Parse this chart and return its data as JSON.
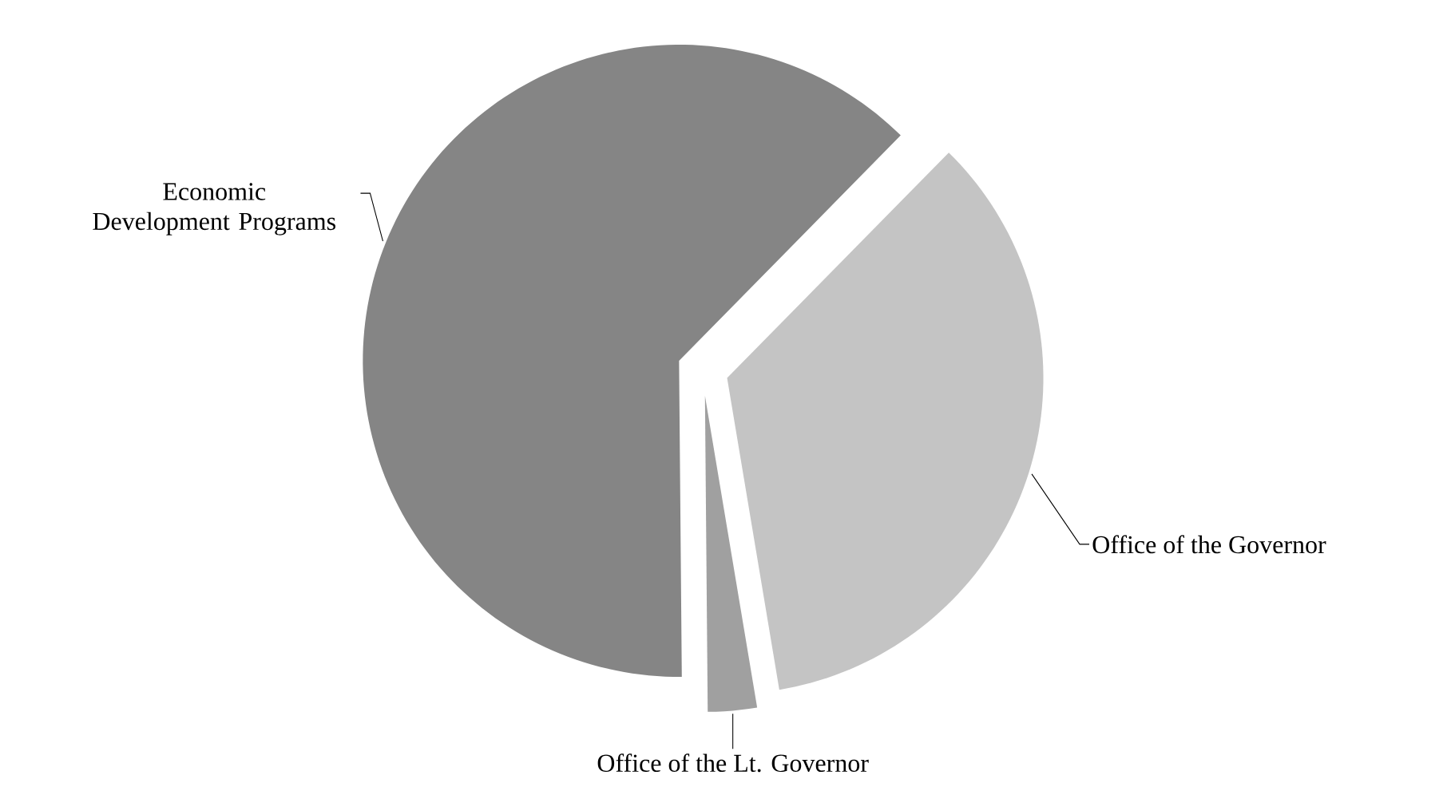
{
  "chart_data": {
    "type": "pie",
    "categories": [
      "Office of the Governor",
      "Office of the Lt. Governor",
      "Economic Development Programs"
    ],
    "values": [
      35,
      2.5,
      62.5
    ],
    "colors": [
      "#c4c4c4",
      "#a0a0a0",
      "#858585"
    ]
  }
}
